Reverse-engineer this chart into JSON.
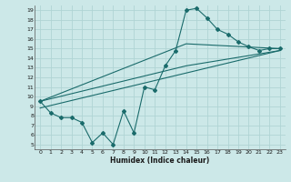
{
  "xlabel": "Humidex (Indice chaleur)",
  "bg_color": "#cce8e8",
  "grid_color": "#b0d4d4",
  "line_color": "#1a6b6b",
  "xlim": [
    -0.5,
    23.5
  ],
  "ylim": [
    4.5,
    19.5
  ],
  "xticks": [
    0,
    1,
    2,
    3,
    4,
    5,
    6,
    7,
    8,
    9,
    10,
    11,
    12,
    13,
    14,
    15,
    16,
    17,
    18,
    19,
    20,
    21,
    22,
    23
  ],
  "yticks": [
    5,
    6,
    7,
    8,
    9,
    10,
    11,
    12,
    13,
    14,
    15,
    16,
    17,
    18,
    19
  ],
  "line1_x": [
    0,
    1,
    2,
    3,
    4,
    5,
    6,
    7,
    8,
    9,
    10,
    11,
    12,
    13,
    14,
    15,
    16,
    17,
    18,
    19,
    20,
    21,
    22,
    23
  ],
  "line1_y": [
    9.5,
    8.3,
    7.8,
    7.8,
    7.3,
    5.2,
    6.2,
    5.0,
    8.5,
    6.2,
    11.0,
    10.7,
    13.2,
    14.8,
    19.0,
    19.2,
    18.2,
    17.0,
    16.5,
    15.7,
    15.2,
    14.8,
    15.0,
    15.0
  ],
  "line2_x": [
    0,
    14,
    23
  ],
  "line2_y": [
    9.5,
    15.5,
    15.0
  ],
  "line3_x": [
    0,
    14,
    23
  ],
  "line3_y": [
    9.5,
    13.2,
    14.8
  ],
  "line4_x": [
    0,
    23
  ],
  "line4_y": [
    8.8,
    14.8
  ]
}
